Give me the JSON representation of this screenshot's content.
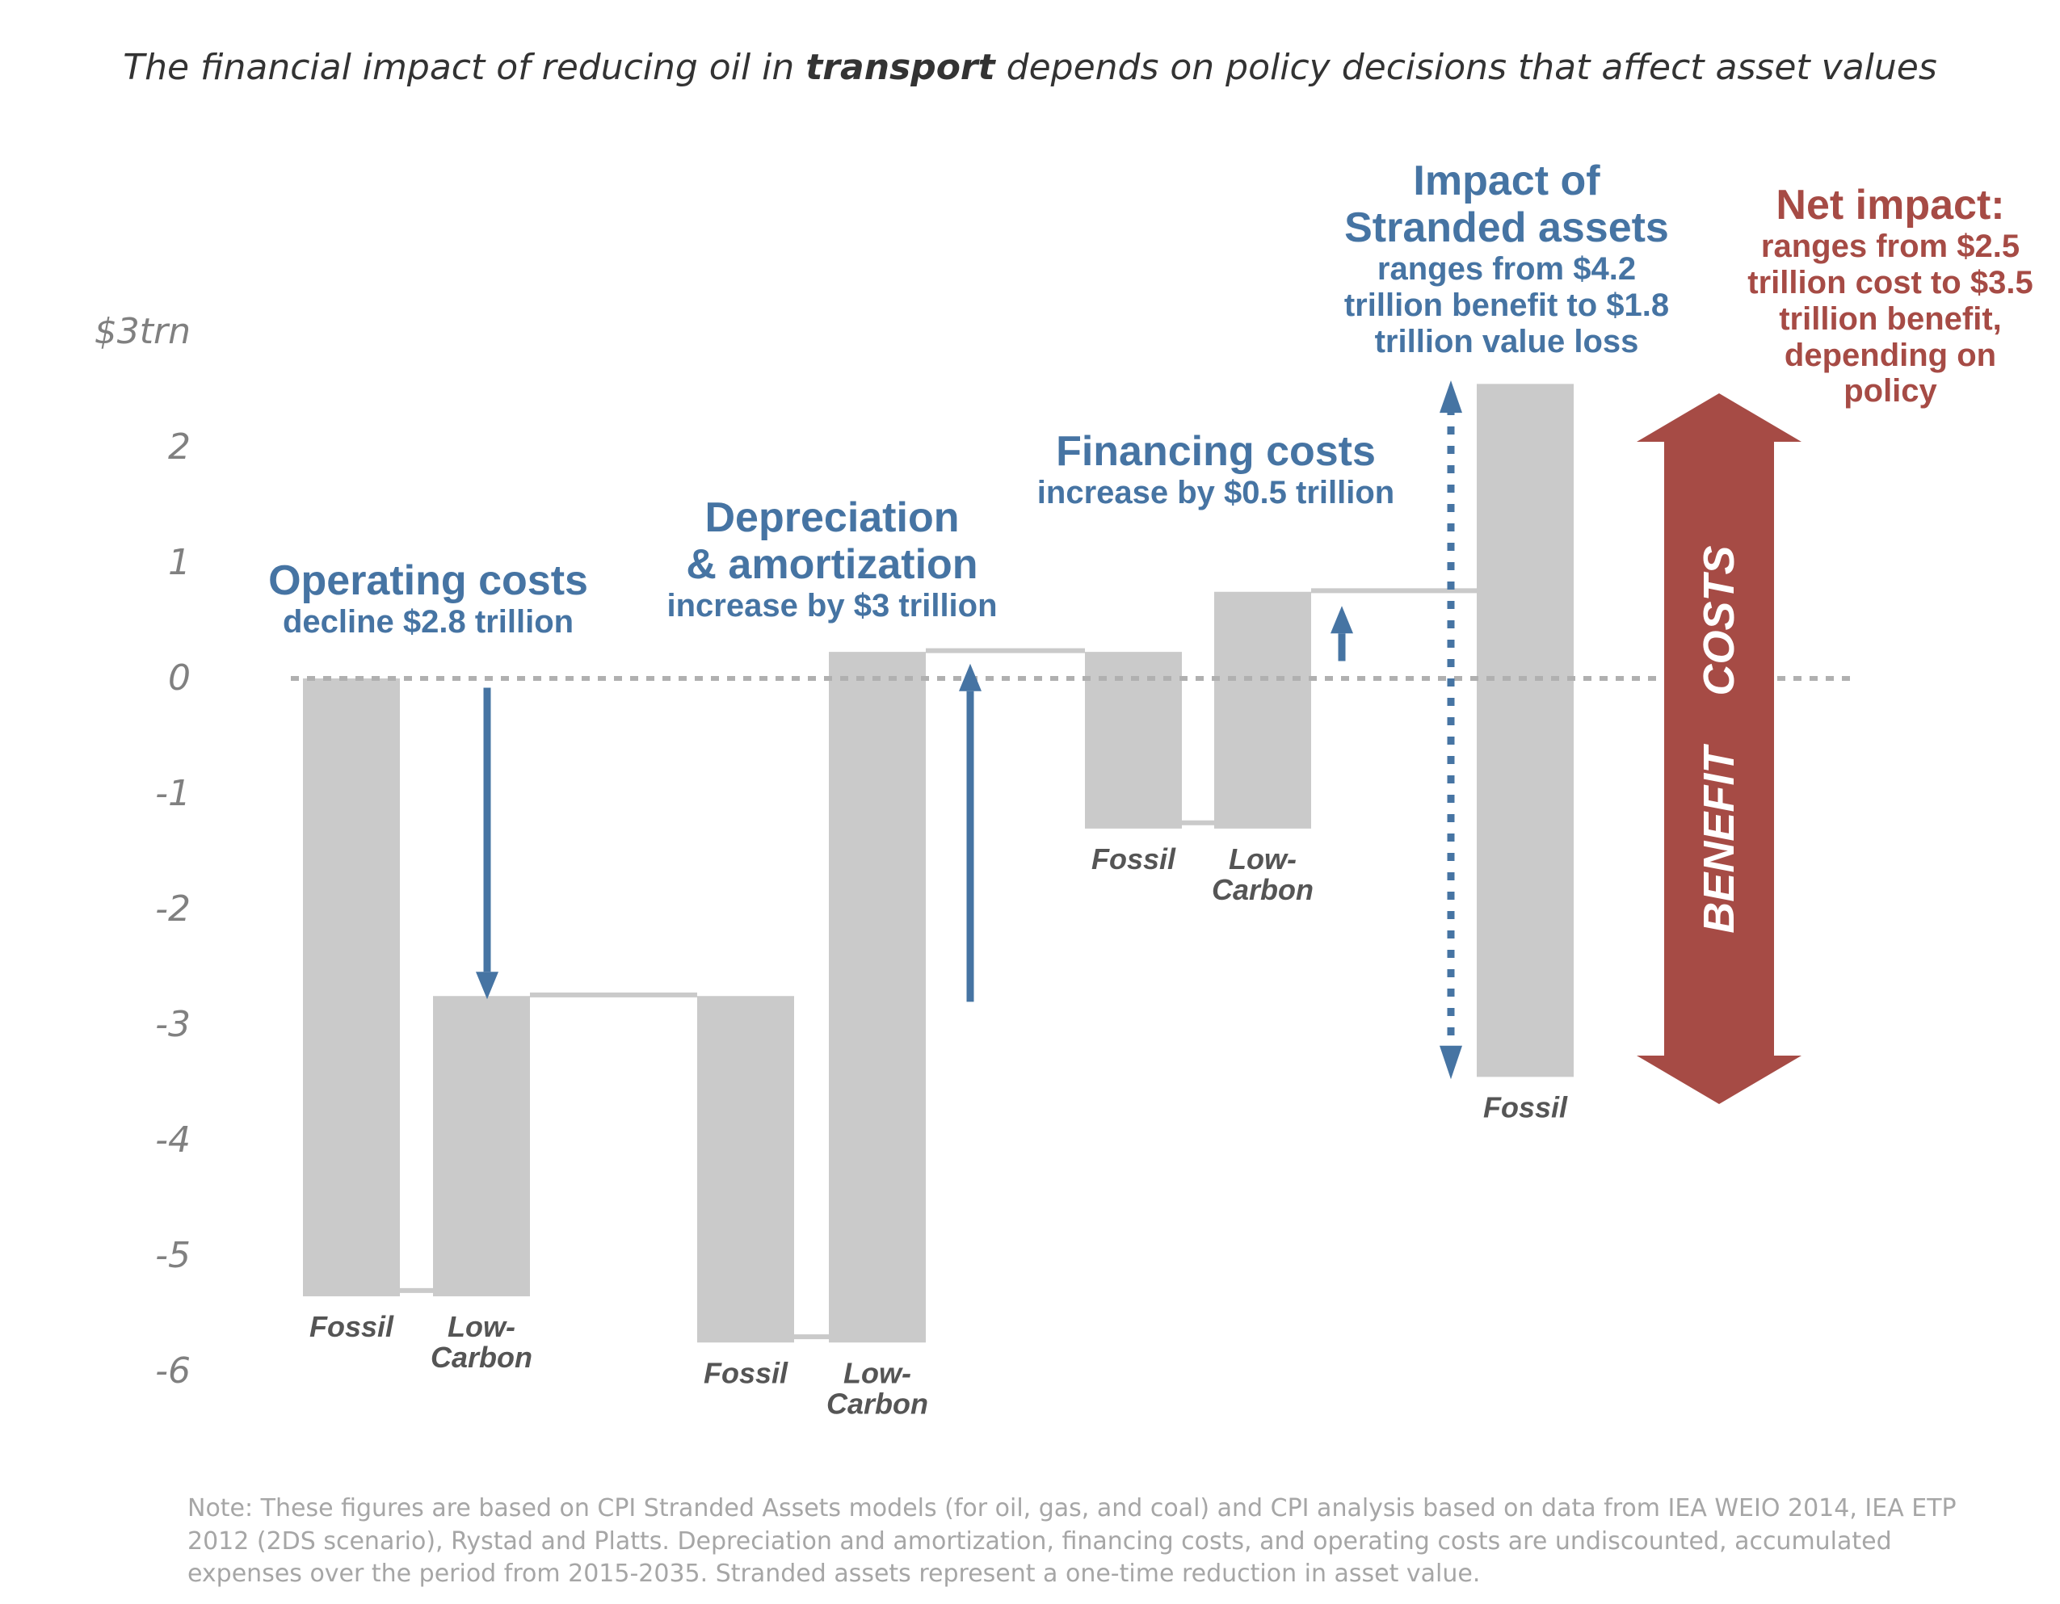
{
  "title": {
    "pre": "The financial impact of reducing oil in ",
    "bold": "transport",
    "post": " depends on policy decisions that affect asset values"
  },
  "chart_data": {
    "type": "bar",
    "subtype": "waterfall",
    "y_unit_label": "$3trn",
    "ylim": [
      -6,
      3
    ],
    "yticks": [
      "$3trn",
      "2",
      "1",
      "0",
      "-1",
      "-2",
      "-3",
      "-4",
      "-5",
      "-6"
    ],
    "bars": [
      {
        "group": "Operating costs",
        "label": "Fossil",
        "bottom": -5.35,
        "top": 0
      },
      {
        "group": "Operating costs",
        "label": "Low-\nCarbon",
        "bottom": -5.35,
        "top": -2.75
      },
      {
        "group": "Depreciation & amortization",
        "label": "Fossil",
        "bottom": -5.75,
        "top": -2.75
      },
      {
        "group": "Depreciation & amortization",
        "label": "Low-\nCarbon",
        "bottom": -5.75,
        "top": 0.23
      },
      {
        "group": "Financing costs",
        "label": "Fossil",
        "bottom": -1.3,
        "top": 0.23
      },
      {
        "group": "Financing costs",
        "label": "Low-\nCarbon",
        "bottom": -1.3,
        "top": 0.75
      },
      {
        "group": "Stranded assets",
        "label": "Fossil",
        "bottom": -3.45,
        "top": 2.55
      }
    ],
    "annotations": [
      {
        "heading": "Operating costs",
        "text": "decline $2.8 trillion"
      },
      {
        "heading": "Depreciation\n& amortization",
        "text": "increase by $3 trillion"
      },
      {
        "heading": "Financing costs",
        "text": "increase by $0.5 trillion"
      },
      {
        "heading": "Impact of\nStranded assets",
        "text": "ranges from $4.2\ntrillion benefit to $1.8\ntrillion value loss"
      },
      {
        "heading": "Net impact:",
        "text": "ranges from $2.5\ntrillion cost to $3.5\ntrillion benefit,\ndepending on\npolicy"
      }
    ],
    "side_arrow": {
      "up_label": "COSTS",
      "down_label": "BENEFIT"
    }
  },
  "note": "Note: These figures are based on CPI Stranded Assets models (for oil, gas, and coal) and CPI analysis based on data from IEA WEIO 2014, IEA ETP 2012 (2DS scenario), Rystad and Platts. Depreciation and amortization, financing costs, and operating costs are undiscounted, accumulated expenses over the period from 2015-2035. Stranded assets represent a one-time reduction in asset value.",
  "colors": {
    "bar": "#cacaca",
    "blue": "#4674a3",
    "red": "#a64b45",
    "axis_text": "#808080",
    "label_text": "#555555"
  }
}
